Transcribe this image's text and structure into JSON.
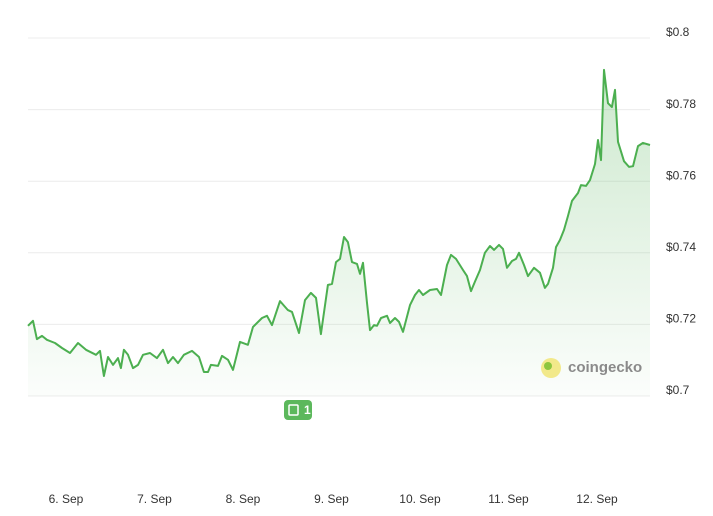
{
  "chart_data": {
    "type": "line",
    "series": [
      {
        "color": "#4caf50",
        "x": [
          5.571,
          5.627,
          5.672,
          5.729,
          5.785,
          5.876,
          5.955,
          6.045,
          6.136,
          6.226,
          6.339,
          6.384,
          6.429,
          6.475,
          6.531,
          6.588,
          6.621,
          6.655,
          6.701,
          6.757,
          6.814,
          6.87,
          6.949,
          7.028,
          7.096,
          7.153,
          7.209,
          7.266,
          7.333,
          7.424,
          7.503,
          7.559,
          7.605,
          7.638,
          7.718,
          7.763,
          7.831,
          7.887,
          7.966,
          8.056,
          8.113,
          8.215,
          8.271,
          8.328,
          8.418,
          8.508,
          8.554,
          8.633,
          8.701,
          8.768,
          8.825,
          8.881,
          8.96,
          9.006,
          9.051,
          9.096,
          9.141,
          9.186,
          9.232,
          9.288,
          9.322,
          9.356,
          9.401,
          9.435,
          9.48,
          9.514,
          9.559,
          9.627,
          9.661,
          9.718,
          9.763,
          9.808,
          9.887,
          9.944,
          9.989,
          10.034,
          10.113,
          10.192,
          10.237,
          10.305,
          10.35,
          10.407,
          10.486,
          10.531,
          10.576,
          10.621,
          10.678,
          10.734,
          10.791,
          10.836,
          10.893,
          10.938,
          10.983,
          11.04,
          11.085,
          11.119,
          11.175,
          11.22,
          11.288,
          11.356,
          11.412,
          11.446,
          11.503,
          11.537,
          11.582,
          11.627,
          11.672,
          11.718,
          11.785,
          11.819,
          11.876,
          11.921,
          11.977,
          12.011,
          12.045,
          12.079,
          12.124,
          12.169,
          12.203,
          12.237,
          12.305,
          12.362,
          12.407,
          12.463,
          12.52,
          12.599
        ],
        "values": [
          0.7196,
          0.721,
          0.7159,
          0.7168,
          0.7157,
          0.7148,
          0.7134,
          0.712,
          0.7148,
          0.7129,
          0.7115,
          0.7126,
          0.7056,
          0.7109,
          0.7087,
          0.7106,
          0.7078,
          0.7129,
          0.7115,
          0.7078,
          0.7087,
          0.7115,
          0.712,
          0.7106,
          0.7129,
          0.7092,
          0.7109,
          0.7092,
          0.7115,
          0.7126,
          0.7109,
          0.7067,
          0.7067,
          0.7087,
          0.7084,
          0.7112,
          0.7101,
          0.7073,
          0.7151,
          0.7143,
          0.7193,
          0.7218,
          0.7224,
          0.7198,
          0.7265,
          0.724,
          0.7235,
          0.7176,
          0.7268,
          0.7288,
          0.7274,
          0.7173,
          0.731,
          0.7313,
          0.7374,
          0.7383,
          0.7444,
          0.743,
          0.7374,
          0.7369,
          0.7341,
          0.7372,
          0.726,
          0.7184,
          0.7198,
          0.7196,
          0.7218,
          0.7224,
          0.7204,
          0.7218,
          0.7207,
          0.7179,
          0.7254,
          0.7282,
          0.7296,
          0.7282,
          0.7296,
          0.7299,
          0.7282,
          0.7366,
          0.7394,
          0.7383,
          0.7352,
          0.7335,
          0.7293,
          0.7319,
          0.7352,
          0.74,
          0.7419,
          0.7408,
          0.7422,
          0.7411,
          0.7358,
          0.7377,
          0.7383,
          0.74,
          0.7366,
          0.7335,
          0.7358,
          0.7344,
          0.7302,
          0.7313,
          0.7358,
          0.7416,
          0.7436,
          0.7464,
          0.7503,
          0.7545,
          0.7567,
          0.7589,
          0.7587,
          0.7603,
          0.7648,
          0.7715,
          0.7659,
          0.7911,
          0.7818,
          0.7807,
          0.7855,
          0.771,
          0.7656,
          0.764,
          0.7642,
          0.7698,
          0.7707,
          0.7701
        ]
      }
    ],
    "xlim": [
      5.571,
      12.599
    ],
    "xticks": [
      {
        "value": 6,
        "label": "6. Sep"
      },
      {
        "value": 7,
        "label": "7. Sep"
      },
      {
        "value": 8,
        "label": "8. Sep"
      },
      {
        "value": 9,
        "label": "9. Sep"
      },
      {
        "value": 10,
        "label": "10. Sep"
      },
      {
        "value": 11,
        "label": "11. Sep"
      },
      {
        "value": 12,
        "label": "12. Sep"
      }
    ],
    "ylim": [
      0.7,
      0.8
    ],
    "yticks": [
      {
        "value": 0.7,
        "label": "$0.7"
      },
      {
        "value": 0.72,
        "label": "$0.72"
      },
      {
        "value": 0.74,
        "label": "$0.74"
      },
      {
        "value": 0.76,
        "label": "$0.76"
      },
      {
        "value": 0.78,
        "label": "$0.78"
      },
      {
        "value": 0.8,
        "label": "$0.8"
      }
    ],
    "grid": true,
    "annotation": "1",
    "watermark": "coingecko"
  }
}
